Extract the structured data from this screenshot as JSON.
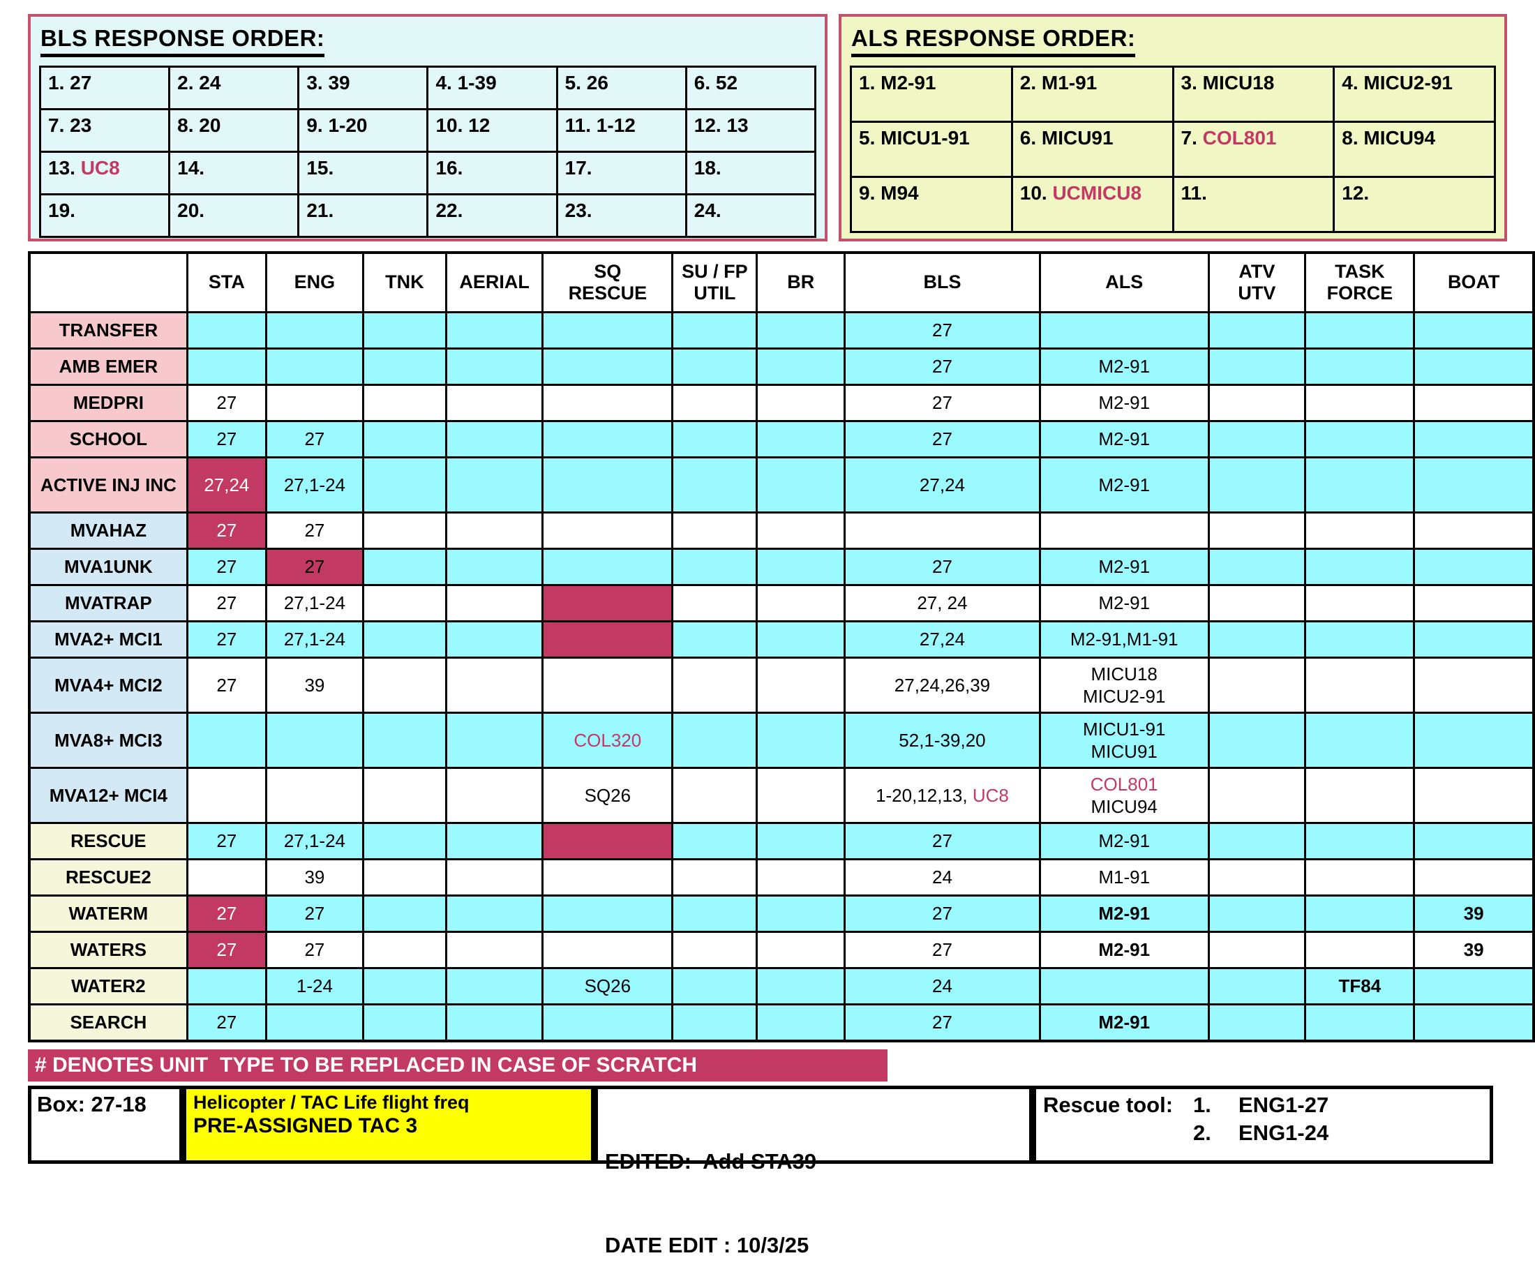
{
  "colors": {
    "cyan": "#9AFAFF",
    "crimson": "#C23A64",
    "pink_text": "#C23A64",
    "white": "#FFFFFF"
  },
  "bls_panel": {
    "title": "BLS RESPONSE ORDER:",
    "cols": 6,
    "entries": [
      {
        "n": "1.",
        "v": "27"
      },
      {
        "n": "2.",
        "v": "24"
      },
      {
        "n": "3.",
        "v": "39"
      },
      {
        "n": "4.",
        "v": "1-39"
      },
      {
        "n": "5.",
        "v": "26"
      },
      {
        "n": "6.",
        "v": "52"
      },
      {
        "n": "7.",
        "v": "23"
      },
      {
        "n": "8.",
        "v": "20"
      },
      {
        "n": "9.",
        "v": "1-20"
      },
      {
        "n": "10.",
        "v": "12"
      },
      {
        "n": "11.",
        "v": "1-12"
      },
      {
        "n": "12.",
        "v": "13"
      },
      {
        "n": "13.",
        "v": "UC8",
        "pink": true
      },
      {
        "n": "14.",
        "v": ""
      },
      {
        "n": "15.",
        "v": ""
      },
      {
        "n": "16.",
        "v": ""
      },
      {
        "n": "17.",
        "v": ""
      },
      {
        "n": "18.",
        "v": ""
      },
      {
        "n": "19.",
        "v": ""
      },
      {
        "n": "20.",
        "v": ""
      },
      {
        "n": "21.",
        "v": ""
      },
      {
        "n": "22.",
        "v": ""
      },
      {
        "n": "23.",
        "v": ""
      },
      {
        "n": "24.",
        "v": ""
      }
    ]
  },
  "als_panel": {
    "title": "ALS RESPONSE ORDER:",
    "cols": 4,
    "entries": [
      {
        "n": "1.",
        "v": "M2-91"
      },
      {
        "n": "2.",
        "v": "M1-91"
      },
      {
        "n": "3.",
        "v": "MICU18"
      },
      {
        "n": "4.",
        "v": "MICU2-91"
      },
      {
        "n": "5.",
        "v": "MICU1-91"
      },
      {
        "n": "6.",
        "v": "MICU91"
      },
      {
        "n": "7.",
        "v": "COL801",
        "pink": true
      },
      {
        "n": "8.",
        "v": "MICU94"
      },
      {
        "n": "9.",
        "v": "M94"
      },
      {
        "n": "10.",
        "v": "UCMICU8",
        "pink": true
      },
      {
        "n": "11.",
        "v": ""
      },
      {
        "n": "12.",
        "v": ""
      }
    ]
  },
  "main_table": {
    "columns": [
      {
        "key": "label",
        "lines": [
          ""
        ]
      },
      {
        "key": "sta",
        "lines": [
          "STA"
        ]
      },
      {
        "key": "eng",
        "lines": [
          "ENG"
        ]
      },
      {
        "key": "tnk",
        "lines": [
          "TNK"
        ]
      },
      {
        "key": "aerial",
        "lines": [
          "AERIAL"
        ]
      },
      {
        "key": "sq",
        "lines": [
          "SQ",
          "RESCUE"
        ]
      },
      {
        "key": "sufp",
        "lines": [
          "SU / FP",
          "UTIL"
        ]
      },
      {
        "key": "br",
        "lines": [
          "BR"
        ]
      },
      {
        "key": "bls",
        "lines": [
          "BLS"
        ]
      },
      {
        "key": "als",
        "lines": [
          "ALS"
        ]
      },
      {
        "key": "atv",
        "lines": [
          "ATV",
          "UTV"
        ]
      },
      {
        "key": "task",
        "lines": [
          "TASK",
          "FORCE"
        ]
      },
      {
        "key": "boat",
        "lines": [
          "BOAT"
        ]
      }
    ],
    "rows": [
      {
        "label": "TRANSFER",
        "label_bg": "pink",
        "bg": "cyan",
        "cells": {
          "bls": "27"
        }
      },
      {
        "label": "AMB EMER",
        "label_bg": "pink",
        "bg": "cyan",
        "cells": {
          "bls": "27",
          "als": "M2-91"
        }
      },
      {
        "label": "MEDPRI",
        "label_bg": "pink",
        "bg": "white",
        "cells": {
          "sta": "27",
          "bls": "27",
          "als": "M2-91"
        }
      },
      {
        "label": "SCHOOL",
        "label_bg": "pink",
        "bg": "cyan",
        "cells": {
          "sta": "27",
          "eng": "27",
          "bls": "27",
          "als": "M2-91"
        }
      },
      {
        "label": "ACTIVE INJ INC",
        "label_bg": "pink",
        "bg": "cyan",
        "cells": {
          "sta": {
            "text": "27,24",
            "bg": "crimson",
            "fg": "white"
          },
          "eng": "27,1-24",
          "bls": "27,24",
          "als": "M2-91"
        }
      },
      {
        "label": "MVAHAZ",
        "label_bg": "blue",
        "bg": "white",
        "cells": {
          "sta": {
            "text": "27",
            "bg": "crimson",
            "fg": "white"
          },
          "eng": "27"
        }
      },
      {
        "label": "MVA1UNK",
        "label_bg": "blue",
        "bg": "cyan",
        "cells": {
          "sta": "27",
          "eng": {
            "text": "27",
            "bg": "crimson"
          },
          "bls": "27",
          "als": "M2-91"
        }
      },
      {
        "label": "MVATRAP",
        "label_bg": "blue",
        "bg": "white",
        "cells": {
          "sta": "27",
          "eng": "27,1-24",
          "sq": {
            "bg": "crimson"
          },
          "bls": "27, 24",
          "als": "M2-91"
        }
      },
      {
        "label": "MVA2+ MCI1",
        "label_bg": "blue",
        "bg": "cyan",
        "cells": {
          "sta": "27",
          "eng": "27,1-24",
          "sq": {
            "bg": "crimson"
          },
          "bls": "27,24",
          "als": "M2-91,M1-91"
        }
      },
      {
        "label": "MVA4+ MCI2",
        "label_bg": "blue",
        "bg": "white",
        "cells": {
          "sta": "27",
          "eng": "39",
          "bls": "27,24,26,39",
          "als": {
            "lines": [
              "MICU18",
              "MICU2-91"
            ]
          }
        }
      },
      {
        "label": "MVA8+ MCI3",
        "label_bg": "blue",
        "bg": "cyan",
        "cells": {
          "sq": {
            "text": "COL320",
            "fg": "pink"
          },
          "bls": "52,1-39,20",
          "als": {
            "lines": [
              "MICU1-91",
              "MICU91"
            ]
          }
        }
      },
      {
        "label": "MVA12+ MCI4",
        "label_bg": "blue",
        "bg": "white",
        "cells": {
          "sq": "SQ26",
          "bls": {
            "segments": [
              {
                "t": "1-20,12,13, "
              },
              {
                "t": "UC8",
                "fg": "pink"
              }
            ]
          },
          "als": {
            "lines": [
              [
                {
                  "t": "COL801",
                  "fg": "pink"
                }
              ],
              [
                {
                  "t": "MICU94"
                }
              ]
            ]
          }
        }
      },
      {
        "label": "RESCUE",
        "label_bg": "yellow",
        "bg": "cyan",
        "cells": {
          "sta": "27",
          "eng": "27,1-24",
          "sq": {
            "bg": "crimson"
          },
          "bls": "27",
          "als": "M2-91"
        }
      },
      {
        "label": "RESCUE2",
        "label_bg": "yellow",
        "bg": "white",
        "cells": {
          "eng": "39",
          "bls": "24",
          "als": "M1-91"
        }
      },
      {
        "label": "WATERM",
        "label_bg": "yellow",
        "bg": "cyan",
        "cells": {
          "sta": {
            "text": "27",
            "bg": "crimson",
            "fg": "white"
          },
          "eng": "27",
          "bls": "27",
          "als": {
            "text": "M2-91",
            "bold": true
          },
          "boat": {
            "text": "39",
            "bold": true
          }
        }
      },
      {
        "label": "WATERS",
        "label_bg": "yellow",
        "bg": "white",
        "cells": {
          "sta": {
            "text": "27",
            "bg": "crimson",
            "fg": "white"
          },
          "eng": "27",
          "bls": "27",
          "als": {
            "text": "M2-91",
            "bold": true
          },
          "boat": {
            "text": "39",
            "bold": true
          }
        }
      },
      {
        "label": "WATER2",
        "label_bg": "yellow",
        "bg": "cyan",
        "cells": {
          "eng": "1-24",
          "sq": "SQ26",
          "bls": "24",
          "task": {
            "text": "TF84",
            "bold": true
          }
        }
      },
      {
        "label": "SEARCH",
        "label_bg": "yellow",
        "bg": "cyan",
        "cells": {
          "sta": "27",
          "bls": "27",
          "als": {
            "text": "M2-91",
            "bold": true
          }
        }
      }
    ]
  },
  "banner": {
    "text": "# DENOTES UNIT  TYPE TO BE REPLACED IN CASE OF SCRATCH"
  },
  "footer": {
    "box_label": "Box: 27-18",
    "heli_line1": "Helicopter / TAC Life flight freq",
    "heli_line2": "PRE-ASSIGNED TAC 3",
    "edited_line1": "EDITED:  Add STA39",
    "edited_line2": "DATE EDIT : 10/3/25",
    "rescue_tool_label": "Rescue tool:",
    "rescue_items": [
      {
        "num": "1.",
        "val": "ENG1-27"
      },
      {
        "num": "2.",
        "val": "ENG1-24"
      }
    ]
  }
}
